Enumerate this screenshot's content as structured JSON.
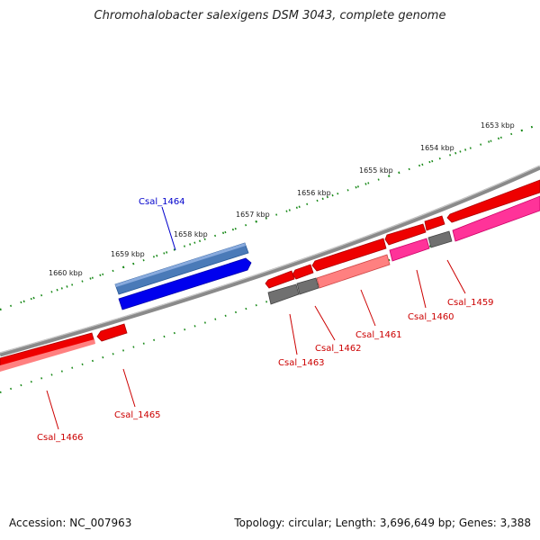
{
  "title": "Chromohalobacter salexigens DSM 3043, complete genome",
  "accession": "Accession: NC_007963",
  "summary": "Topology: circular; Length: 3,696,649 bp; Genes: 3,388",
  "colors": {
    "backbone": "#8a8a8a",
    "ruler_ticks": "#1a8a1a",
    "forward_gene": "#ff0000",
    "reverse_gene": "#ff0000",
    "highlight_gene": "#0000ee",
    "highlight_gene_light": "#4a7ab8",
    "feature_pink": "#ff3399",
    "feature_pink_light": "#ff8080",
    "feature_gray": "#707070",
    "label_red": "#cc0000",
    "label_blue": "#0000cc"
  },
  "ruler_labels": {
    "k1653": "1653 kbp",
    "k1654": "1654 kbp",
    "k1655": "1655 kbp",
    "k1656": "1656 kbp",
    "k1657": "1657 kbp",
    "k1658": "1658 kbp",
    "k1659": "1659 kbp",
    "k1660": "1660 kbp"
  },
  "gene_labels": {
    "csal_1464": "Csal_1464",
    "csal_1459": "Csal_1459",
    "csal_1460": "Csal_1460",
    "csal_1461": "Csal_1461",
    "csal_1462": "Csal_1462",
    "csal_1463": "Csal_1463",
    "csal_1465": "Csal_1465",
    "csal_1466": "Csal_1466"
  }
}
